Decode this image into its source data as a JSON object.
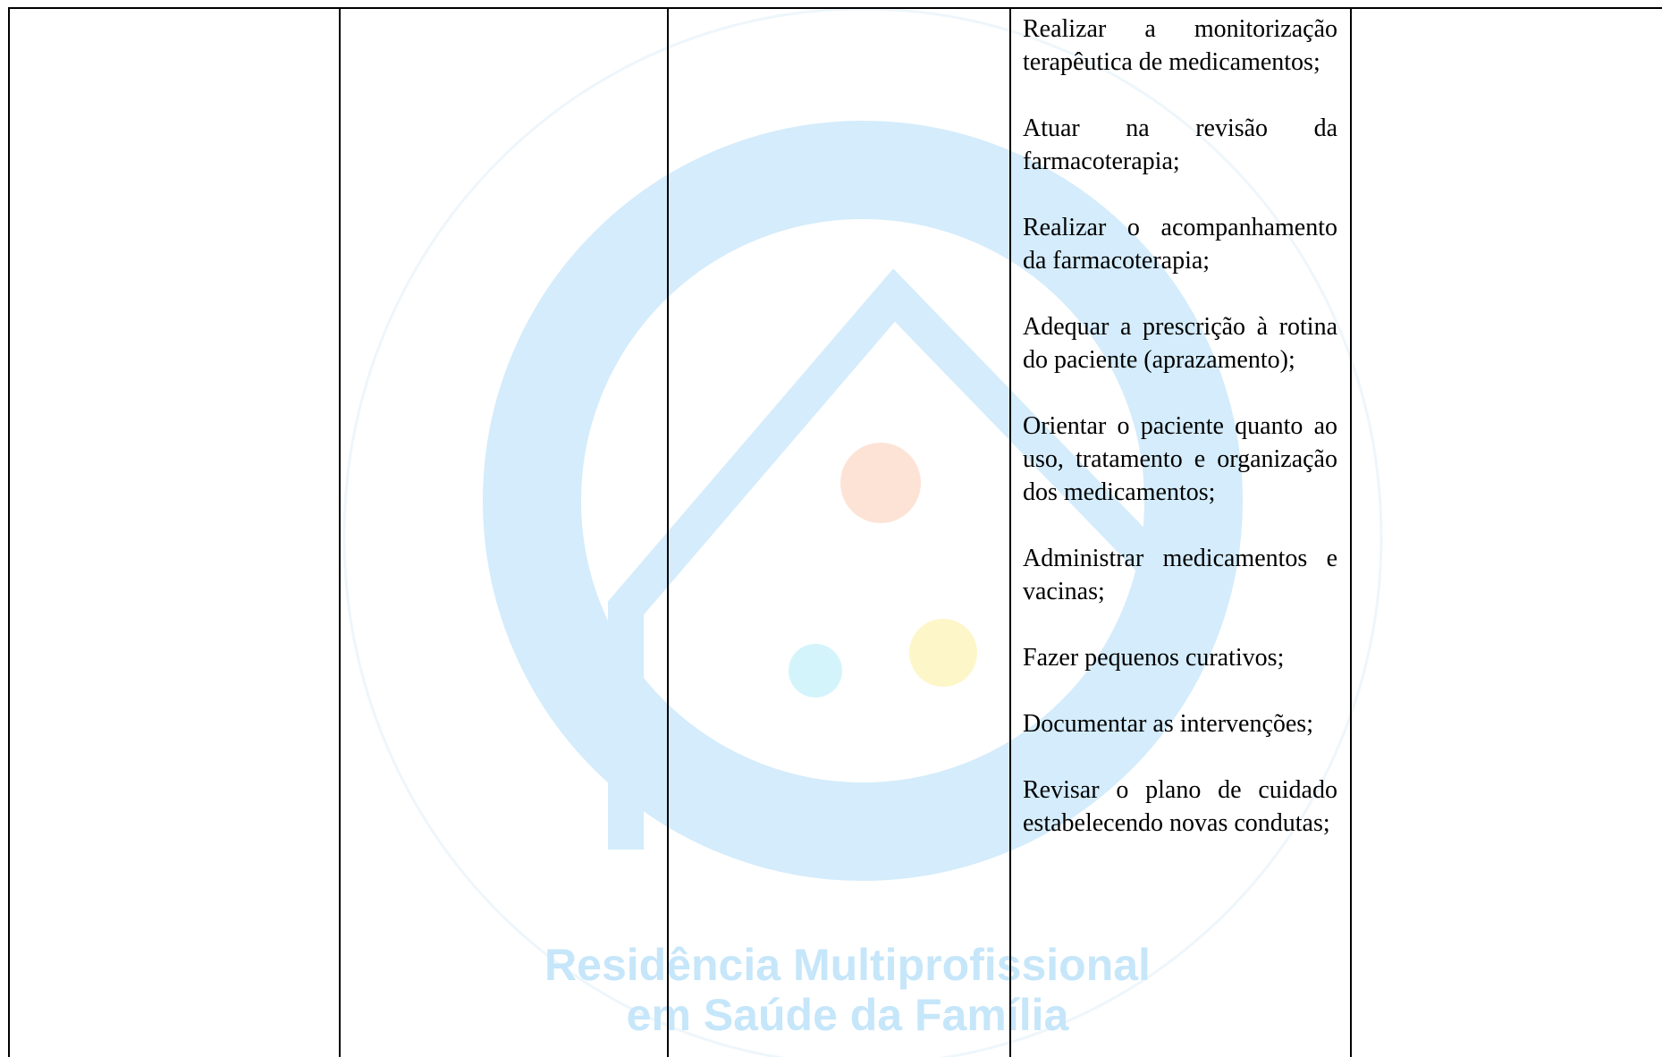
{
  "table": {
    "activities": [
      "Realizar a monitorização terapêutica de medicamentos;",
      "Atuar na revisão da farmacoterapia;",
      "Realizar o acompanhamento da farmacoterapia;",
      "Adequar a prescrição à rotina do paciente (aprazamento);",
      "Orientar o paciente quanto ao uso, tratamento e organização dos medicamentos;",
      "Administrar medicamentos e vacinas;",
      "Fazer pequenos curativos;",
      "Documentar as intervenções;",
      "Revisar o plano de cuidado estabelecendo novas condutas;"
    ]
  },
  "watermark": {
    "lines": [
      "Residência Multiprofissional",
      "em Saúde da Família"
    ]
  }
}
